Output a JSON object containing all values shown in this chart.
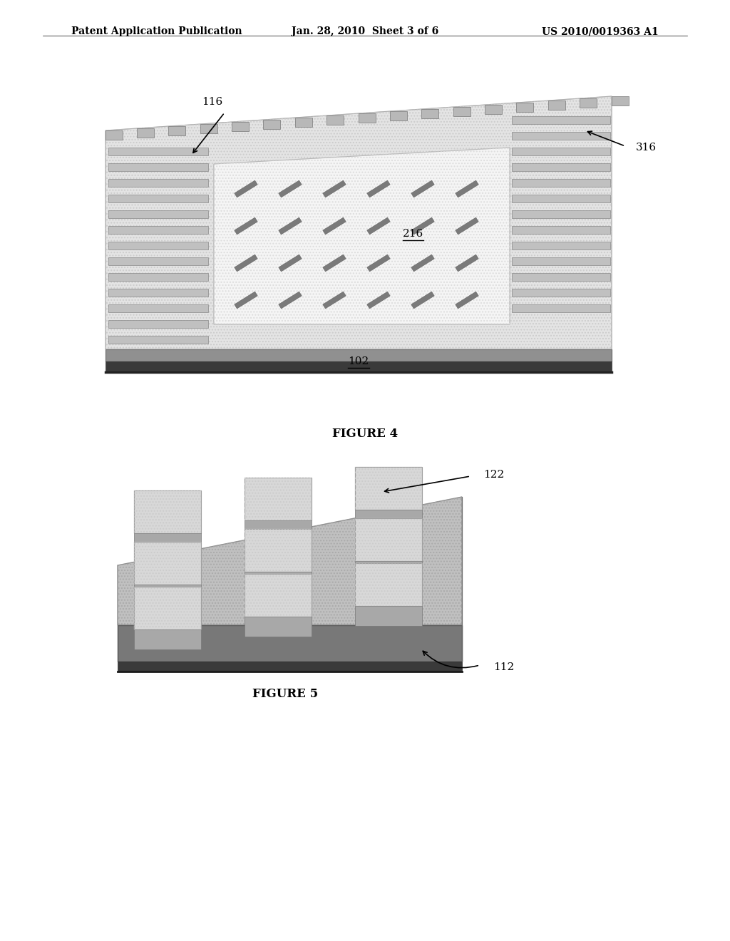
{
  "header_left": "Patent Application Publication",
  "header_center": "Jan. 28, 2010  Sheet 3 of 6",
  "header_right": "US 2010/0019363 A1",
  "figure4_caption": "FIGURE 4",
  "figure5_caption": "FIGURE 5",
  "label_116": "116",
  "label_216": "216",
  "label_316": "316",
  "label_102": "102",
  "label_122": "122",
  "label_112": "112",
  "bg_color": "#ffffff",
  "text_color": "#000000"
}
